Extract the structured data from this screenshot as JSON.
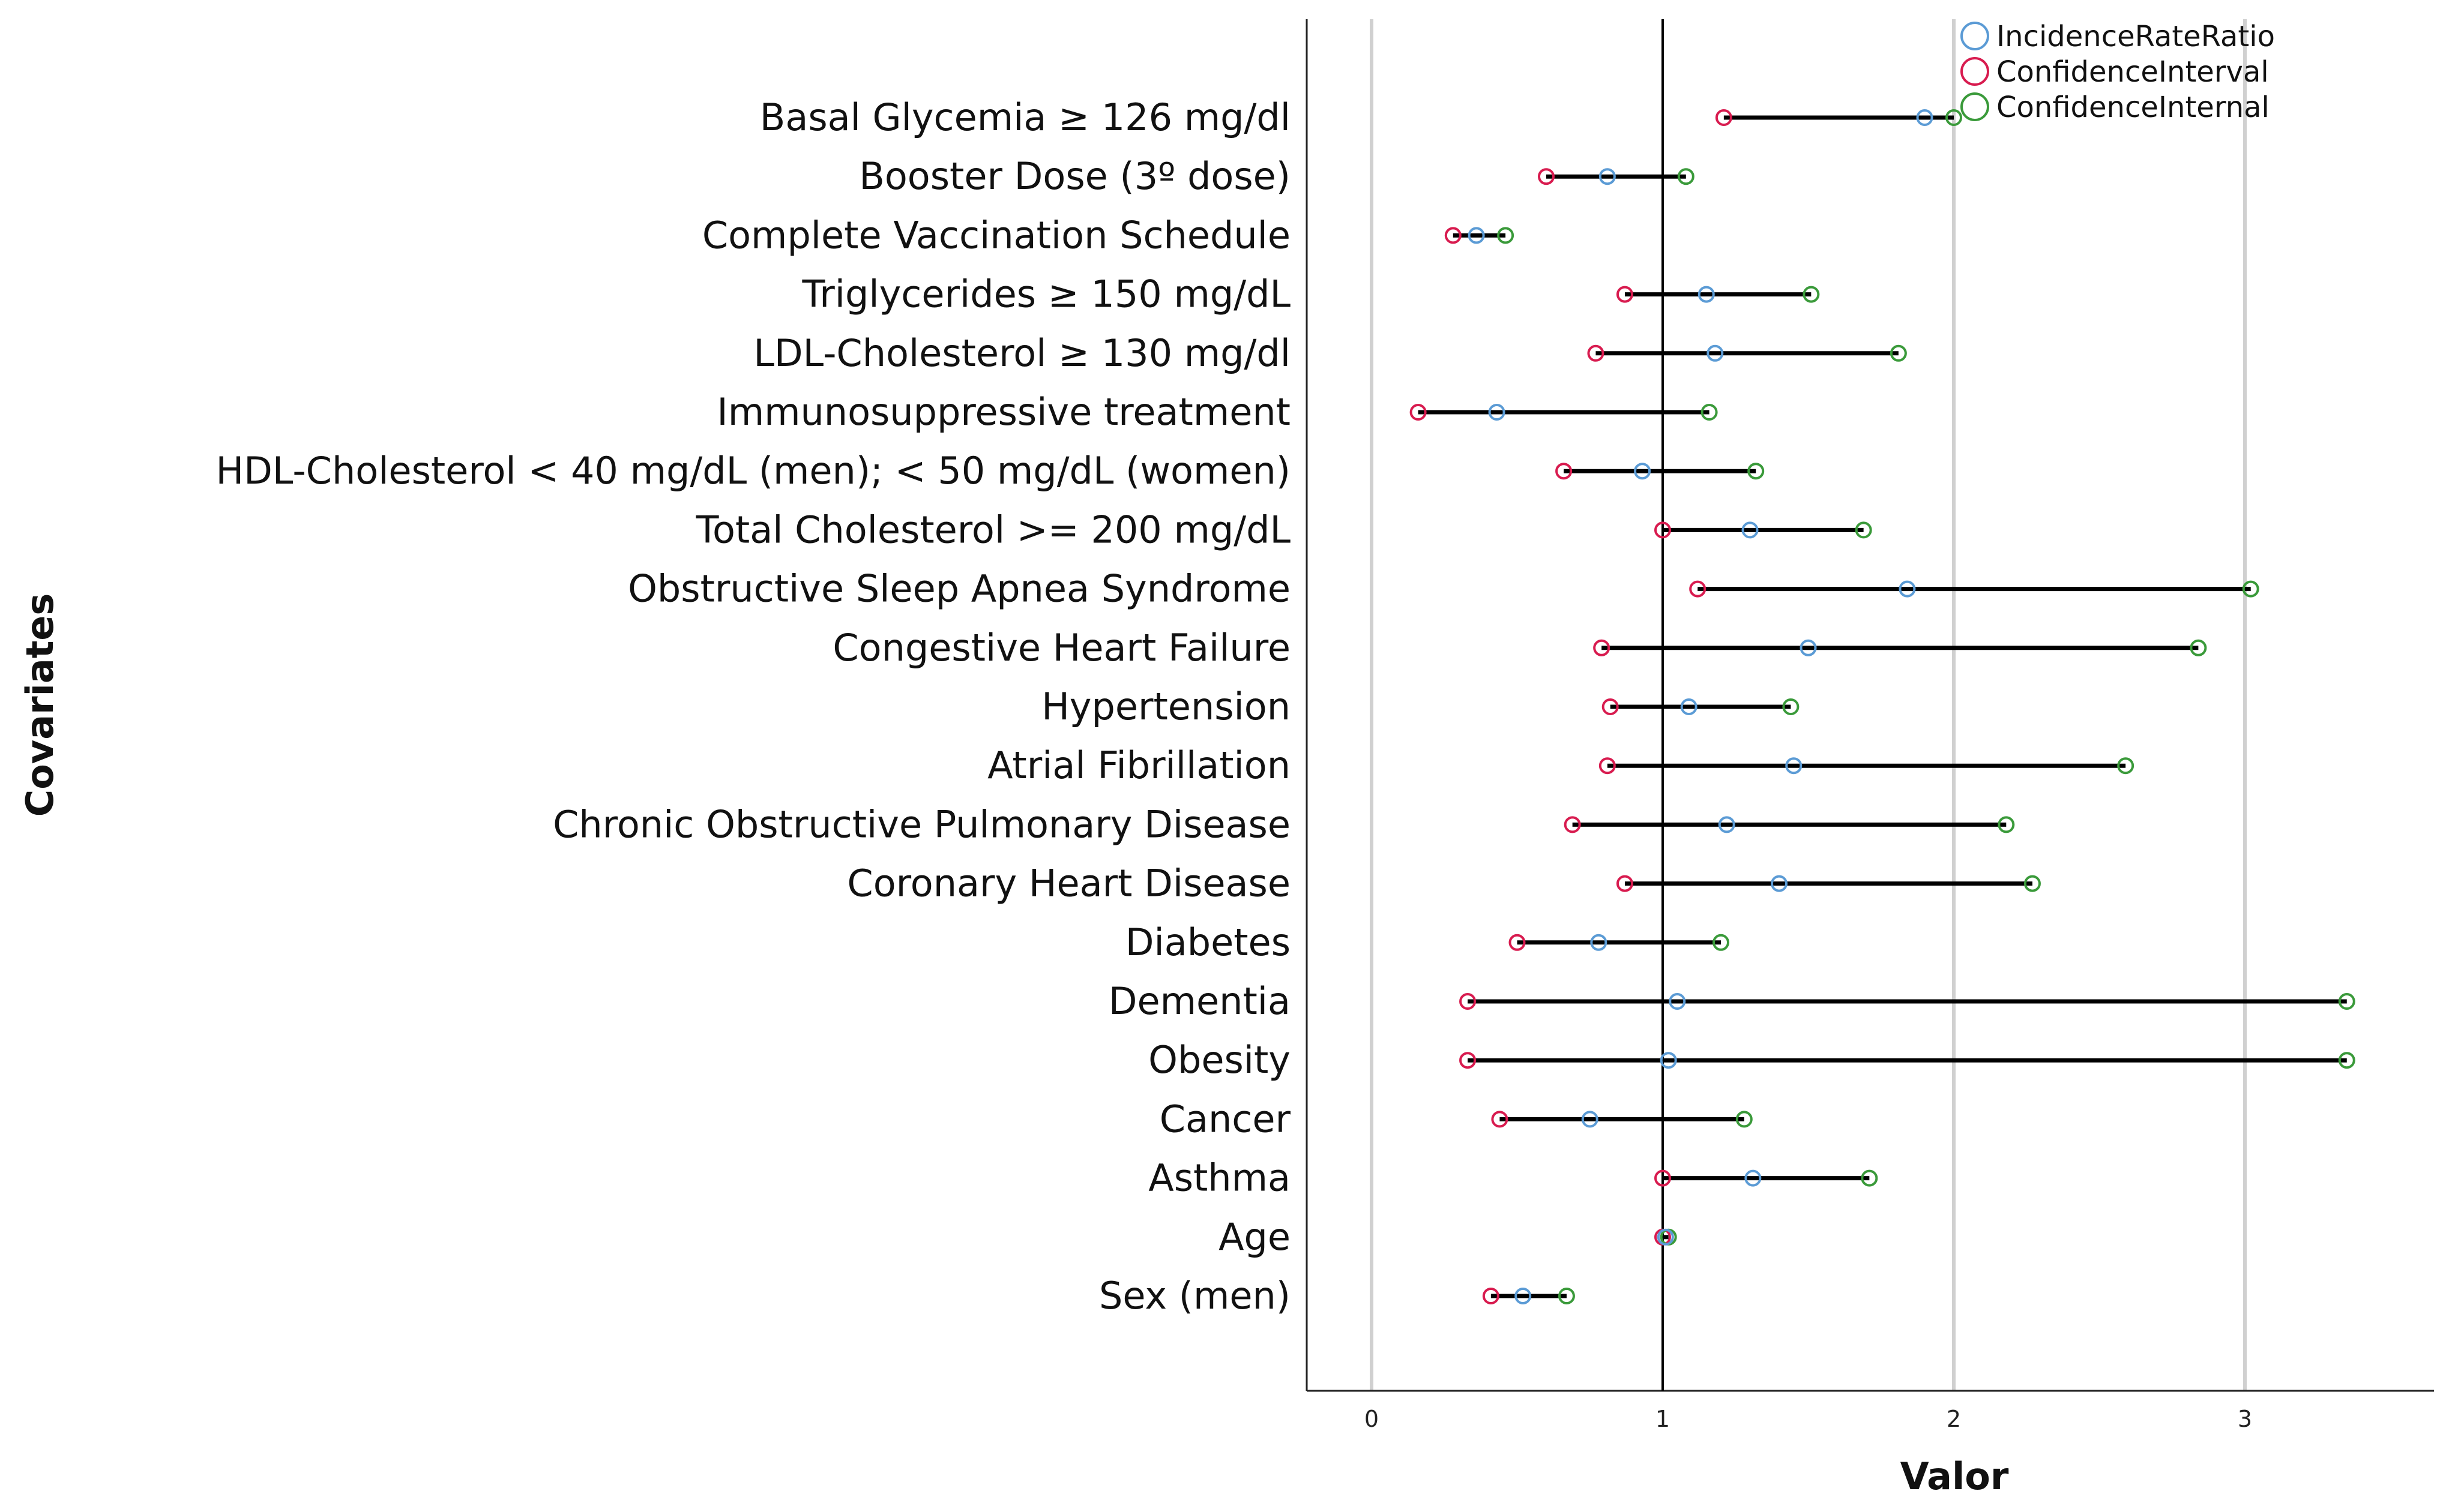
{
  "chart_data": {
    "type": "forest",
    "xlabel": "Valor",
    "ylabel": "Covariates",
    "xlim": [
      -0.22,
      3.65
    ],
    "xticks": [
      0,
      1,
      2,
      3
    ],
    "reference_line": 1,
    "grid": "vertical",
    "legend_position": "top-right",
    "legend": [
      {
        "key": "irr",
        "label": "IncidenceRateRatio",
        "color": "#5b9bd5"
      },
      {
        "key": "lower",
        "label": "ConfidenceInterval",
        "color": "#d81b4f"
      },
      {
        "key": "upper",
        "label": "ConfidenceInternal",
        "color": "#3a9a3a"
      }
    ],
    "categories": [
      "Basal Glycemia ≥ 126 mg/dl",
      "Booster Dose (3º dose)",
      "Complete Vaccination Schedule",
      "Triglycerides ≥ 150 mg/dL",
      "LDL-Cholesterol ≥ 130 mg/dl",
      "Immunosuppressive treatment",
      "HDL-Cholesterol < 40 mg/dL (men); < 50 mg/dL (women)",
      "Total Cholesterol >= 200 mg/dL",
      "Obstructive Sleep Apnea Syndrome",
      "Congestive Heart Failure",
      "Hypertension",
      "Atrial Fibrillation",
      "Chronic Obstructive Pulmonary Disease",
      "Coronary Heart Disease",
      "Diabetes",
      "Dementia",
      "Obesity",
      "Cancer",
      "Asthma",
      "Age",
      "Sex (men)"
    ],
    "series": [
      {
        "name": "IncidenceRateRatio",
        "values": [
          1.9,
          0.81,
          0.36,
          1.15,
          1.18,
          0.43,
          0.93,
          1.3,
          1.84,
          1.5,
          1.09,
          1.45,
          1.22,
          1.4,
          0.78,
          1.05,
          1.02,
          0.75,
          1.31,
          1.01,
          0.52
        ]
      },
      {
        "name": "ConfidenceInterval",
        "values": [
          1.21,
          0.6,
          0.28,
          0.87,
          0.77,
          0.16,
          0.66,
          1.0,
          1.12,
          0.79,
          0.82,
          0.81,
          0.69,
          0.87,
          0.5,
          0.33,
          0.33,
          0.44,
          1.0,
          1.0,
          0.41
        ]
      },
      {
        "name": "ConfidenceInternal",
        "values": [
          2.0,
          1.08,
          0.46,
          1.51,
          1.81,
          1.16,
          1.32,
          1.69,
          3.02,
          2.84,
          1.44,
          2.59,
          2.18,
          2.27,
          1.2,
          3.35,
          3.35,
          1.28,
          1.71,
          1.02,
          0.67
        ]
      }
    ]
  }
}
